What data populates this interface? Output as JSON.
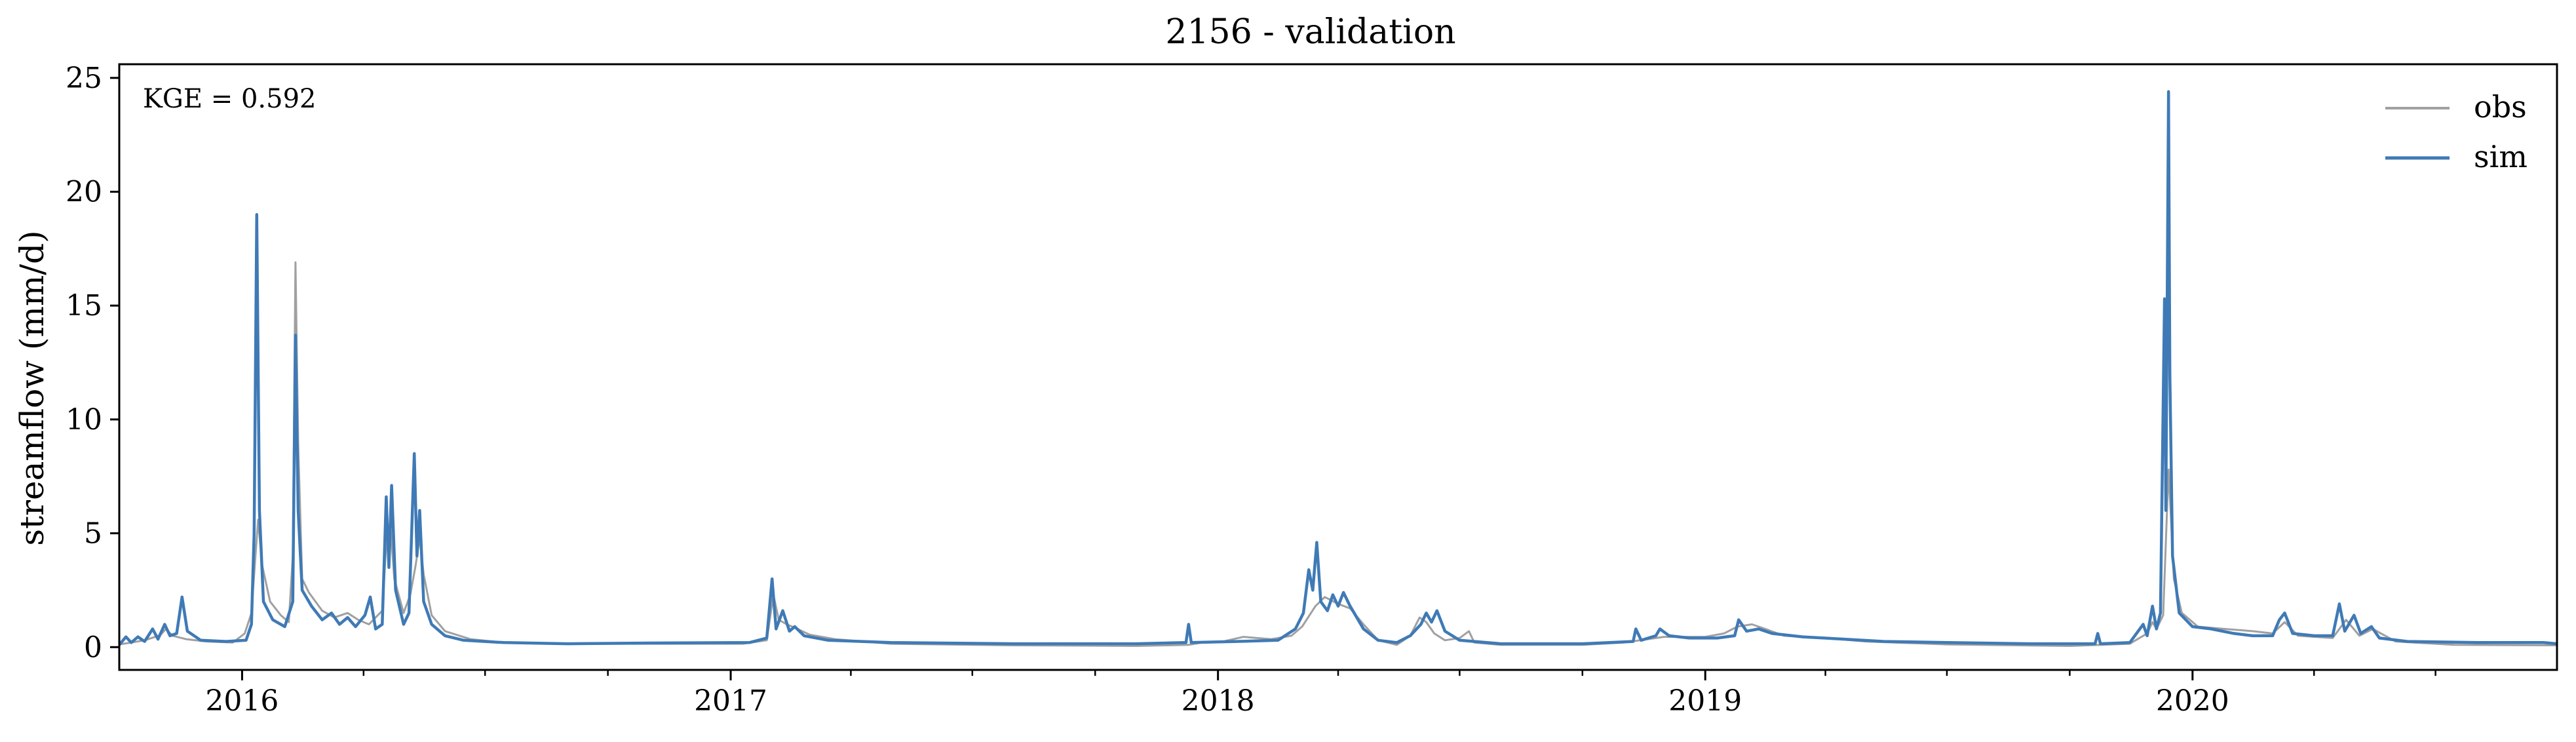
{
  "chart_data": {
    "type": "line",
    "title": "2156 - validation",
    "xlabel": "",
    "ylabel": "streamflow (mm/d)",
    "annotation": "KGE = 0.592",
    "xlim": [
      "2015-10-01",
      "2020-09-30"
    ],
    "ylim": [
      -1.0,
      25.6
    ],
    "yticks": [
      0,
      5,
      10,
      15,
      20,
      25
    ],
    "ytick_labels": [
      "0",
      "5",
      "10",
      "15",
      "20",
      "25"
    ],
    "xticks": [
      "2016-01-01",
      "2017-01-01",
      "2018-01-01",
      "2019-01-01",
      "2020-01-01"
    ],
    "xtick_labels": [
      "2016",
      "2017",
      "2018",
      "2019",
      "2020"
    ],
    "grid": false,
    "legend": {
      "position": "top-right",
      "entries": [
        "obs",
        "sim"
      ]
    },
    "series": [
      {
        "name": "obs",
        "color": "#a0a0a0",
        "points": [
          [
            "2015-10-01",
            0.12
          ],
          [
            "2015-10-10",
            0.2
          ],
          [
            "2015-10-20",
            0.3
          ],
          [
            "2015-10-28",
            0.45
          ],
          [
            "2015-11-01",
            0.55
          ],
          [
            "2015-11-05",
            0.8
          ],
          [
            "2015-11-10",
            0.5
          ],
          [
            "2015-11-20",
            0.35
          ],
          [
            "2015-12-05",
            0.25
          ],
          [
            "2015-12-25",
            0.2
          ],
          [
            "2016-01-03",
            0.6
          ],
          [
            "2016-01-08",
            1.5
          ],
          [
            "2016-01-11",
            4.0
          ],
          [
            "2016-01-13",
            5.6
          ],
          [
            "2016-01-16",
            3.6
          ],
          [
            "2016-01-22",
            2.0
          ],
          [
            "2016-01-30",
            1.4
          ],
          [
            "2016-02-05",
            1.1
          ],
          [
            "2016-02-08",
            4.0
          ],
          [
            "2016-02-10",
            16.9
          ],
          [
            "2016-02-12",
            9.0
          ],
          [
            "2016-02-15",
            3.0
          ],
          [
            "2016-02-20",
            2.4
          ],
          [
            "2016-03-01",
            1.6
          ],
          [
            "2016-03-10",
            1.3
          ],
          [
            "2016-03-20",
            1.5
          ],
          [
            "2016-03-28",
            1.2
          ],
          [
            "2016-04-05",
            1.0
          ],
          [
            "2016-04-15",
            1.6
          ],
          [
            "2016-04-18",
            4.5
          ],
          [
            "2016-04-21",
            5.4
          ],
          [
            "2016-04-24",
            3.0
          ],
          [
            "2016-05-01",
            1.5
          ],
          [
            "2016-05-06",
            2.3
          ],
          [
            "2016-05-10",
            3.6
          ],
          [
            "2016-05-13",
            4.8
          ],
          [
            "2016-05-16",
            3.2
          ],
          [
            "2016-05-22",
            1.4
          ],
          [
            "2016-06-01",
            0.7
          ],
          [
            "2016-06-20",
            0.35
          ],
          [
            "2016-07-15",
            0.2
          ],
          [
            "2016-09-01",
            0.15
          ],
          [
            "2016-11-01",
            0.15
          ],
          [
            "2017-01-10",
            0.15
          ],
          [
            "2017-01-28",
            0.3
          ],
          [
            "2017-02-02",
            2.3
          ],
          [
            "2017-02-06",
            1.2
          ],
          [
            "2017-02-12",
            1.0
          ],
          [
            "2017-02-20",
            0.8
          ],
          [
            "2017-03-01",
            0.55
          ],
          [
            "2017-03-20",
            0.35
          ],
          [
            "2017-05-01",
            0.15
          ],
          [
            "2017-08-01",
            0.08
          ],
          [
            "2017-11-01",
            0.05
          ],
          [
            "2017-12-10",
            0.1
          ],
          [
            "2017-12-20",
            0.2
          ],
          [
            "2018-01-05",
            0.25
          ],
          [
            "2018-01-20",
            0.45
          ],
          [
            "2018-02-10",
            0.35
          ],
          [
            "2018-02-25",
            0.5
          ],
          [
            "2018-03-05",
            0.9
          ],
          [
            "2018-03-15",
            1.8
          ],
          [
            "2018-03-22",
            2.2
          ],
          [
            "2018-04-01",
            1.9
          ],
          [
            "2018-04-10",
            1.7
          ],
          [
            "2018-04-20",
            1.0
          ],
          [
            "2018-05-01",
            0.3
          ],
          [
            "2018-05-15",
            0.1
          ],
          [
            "2018-05-25",
            0.5
          ],
          [
            "2018-06-01",
            1.3
          ],
          [
            "2018-06-06",
            1.1
          ],
          [
            "2018-06-12",
            0.6
          ],
          [
            "2018-06-20",
            0.3
          ],
          [
            "2018-07-01",
            0.4
          ],
          [
            "2018-07-08",
            0.7
          ],
          [
            "2018-07-12",
            0.2
          ],
          [
            "2018-08-01",
            0.1
          ],
          [
            "2018-10-01",
            0.1
          ],
          [
            "2018-11-01",
            0.2
          ],
          [
            "2018-12-01",
            0.45
          ],
          [
            "2019-01-01",
            0.45
          ],
          [
            "2019-01-15",
            0.6
          ],
          [
            "2019-01-25",
            0.9
          ],
          [
            "2019-02-05",
            1.0
          ],
          [
            "2019-02-15",
            0.8
          ],
          [
            "2019-03-01",
            0.5
          ],
          [
            "2019-04-01",
            0.4
          ],
          [
            "2019-05-01",
            0.25
          ],
          [
            "2019-07-01",
            0.12
          ],
          [
            "2019-10-01",
            0.05
          ],
          [
            "2019-11-15",
            0.15
          ],
          [
            "2019-11-28",
            0.6
          ],
          [
            "2019-12-02",
            1.1
          ],
          [
            "2019-12-05",
            0.8
          ],
          [
            "2019-12-10",
            1.4
          ],
          [
            "2019-12-14",
            7.8
          ],
          [
            "2019-12-16",
            5.5
          ],
          [
            "2019-12-18",
            3.0
          ],
          [
            "2019-12-24",
            1.5
          ],
          [
            "2020-01-05",
            0.9
          ],
          [
            "2020-01-25",
            0.8
          ],
          [
            "2020-02-15",
            0.7
          ],
          [
            "2020-03-01",
            0.6
          ],
          [
            "2020-03-10",
            1.1
          ],
          [
            "2020-03-20",
            0.5
          ],
          [
            "2020-04-15",
            0.4
          ],
          [
            "2020-04-25",
            1.2
          ],
          [
            "2020-05-05",
            0.5
          ],
          [
            "2020-05-15",
            0.8
          ],
          [
            "2020-06-01",
            0.25
          ],
          [
            "2020-07-15",
            0.1
          ],
          [
            "2020-09-30",
            0.08
          ]
        ]
      },
      {
        "name": "sim",
        "color": "#3f7ab6",
        "points": [
          [
            "2015-10-01",
            0.1
          ],
          [
            "2015-10-06",
            0.45
          ],
          [
            "2015-10-10",
            0.2
          ],
          [
            "2015-10-15",
            0.45
          ],
          [
            "2015-10-20",
            0.25
          ],
          [
            "2015-10-26",
            0.8
          ],
          [
            "2015-10-30",
            0.35
          ],
          [
            "2015-11-04",
            1.0
          ],
          [
            "2015-11-08",
            0.5
          ],
          [
            "2015-11-13",
            0.6
          ],
          [
            "2015-11-17",
            2.2
          ],
          [
            "2015-11-21",
            0.7
          ],
          [
            "2015-12-01",
            0.3
          ],
          [
            "2015-12-20",
            0.25
          ],
          [
            "2016-01-04",
            0.3
          ],
          [
            "2016-01-08",
            1.0
          ],
          [
            "2016-01-10",
            5.0
          ],
          [
            "2016-01-12",
            19.0
          ],
          [
            "2016-01-14",
            6.0
          ],
          [
            "2016-01-17",
            2.0
          ],
          [
            "2016-01-24",
            1.2
          ],
          [
            "2016-02-02",
            0.9
          ],
          [
            "2016-02-08",
            2.0
          ],
          [
            "2016-02-10",
            13.7
          ],
          [
            "2016-02-12",
            6.0
          ],
          [
            "2016-02-15",
            2.5
          ],
          [
            "2016-02-22",
            1.8
          ],
          [
            "2016-03-01",
            1.2
          ],
          [
            "2016-03-08",
            1.5
          ],
          [
            "2016-03-14",
            1.0
          ],
          [
            "2016-03-20",
            1.3
          ],
          [
            "2016-03-26",
            0.9
          ],
          [
            "2016-04-02",
            1.4
          ],
          [
            "2016-04-06",
            2.2
          ],
          [
            "2016-04-10",
            0.8
          ],
          [
            "2016-04-15",
            1.0
          ],
          [
            "2016-04-18",
            6.6
          ],
          [
            "2016-04-20",
            3.5
          ],
          [
            "2016-04-22",
            7.1
          ],
          [
            "2016-04-25",
            2.5
          ],
          [
            "2016-05-01",
            1.0
          ],
          [
            "2016-05-05",
            1.5
          ],
          [
            "2016-05-09",
            8.5
          ],
          [
            "2016-05-11",
            4.0
          ],
          [
            "2016-05-13",
            6.0
          ],
          [
            "2016-05-16",
            2.0
          ],
          [
            "2016-05-22",
            1.0
          ],
          [
            "2016-06-01",
            0.5
          ],
          [
            "2016-06-15",
            0.3
          ],
          [
            "2016-07-15",
            0.2
          ],
          [
            "2016-09-01",
            0.15
          ],
          [
            "2016-11-01",
            0.18
          ],
          [
            "2017-01-15",
            0.2
          ],
          [
            "2017-01-28",
            0.4
          ],
          [
            "2017-02-01",
            3.0
          ],
          [
            "2017-02-04",
            0.8
          ],
          [
            "2017-02-09",
            1.6
          ],
          [
            "2017-02-14",
            0.7
          ],
          [
            "2017-02-18",
            0.9
          ],
          [
            "2017-02-25",
            0.5
          ],
          [
            "2017-03-15",
            0.3
          ],
          [
            "2017-05-01",
            0.2
          ],
          [
            "2017-08-01",
            0.15
          ],
          [
            "2017-11-01",
            0.15
          ],
          [
            "2017-12-08",
            0.2
          ],
          [
            "2017-12-10",
            1.0
          ],
          [
            "2017-12-12",
            0.2
          ],
          [
            "2018-01-15",
            0.25
          ],
          [
            "2018-02-15",
            0.3
          ],
          [
            "2018-02-28",
            0.8
          ],
          [
            "2018-03-06",
            1.5
          ],
          [
            "2018-03-10",
            3.4
          ],
          [
            "2018-03-13",
            2.5
          ],
          [
            "2018-03-16",
            4.6
          ],
          [
            "2018-03-19",
            2.0
          ],
          [
            "2018-03-24",
            1.6
          ],
          [
            "2018-03-28",
            2.3
          ],
          [
            "2018-04-01",
            1.8
          ],
          [
            "2018-04-05",
            2.4
          ],
          [
            "2018-04-10",
            1.8
          ],
          [
            "2018-04-20",
            0.8
          ],
          [
            "2018-05-01",
            0.3
          ],
          [
            "2018-05-15",
            0.2
          ],
          [
            "2018-05-25",
            0.5
          ],
          [
            "2018-06-02",
            1.0
          ],
          [
            "2018-06-06",
            1.5
          ],
          [
            "2018-06-10",
            1.1
          ],
          [
            "2018-06-14",
            1.6
          ],
          [
            "2018-06-20",
            0.7
          ],
          [
            "2018-07-01",
            0.3
          ],
          [
            "2018-08-01",
            0.15
          ],
          [
            "2018-10-01",
            0.15
          ],
          [
            "2018-11-08",
            0.25
          ],
          [
            "2018-11-10",
            0.8
          ],
          [
            "2018-11-14",
            0.3
          ],
          [
            "2018-11-25",
            0.5
          ],
          [
            "2018-11-28",
            0.8
          ],
          [
            "2018-12-05",
            0.5
          ],
          [
            "2018-12-20",
            0.4
          ],
          [
            "2019-01-10",
            0.4
          ],
          [
            "2019-01-23",
            0.5
          ],
          [
            "2019-01-26",
            1.2
          ],
          [
            "2019-02-01",
            0.7
          ],
          [
            "2019-02-10",
            0.8
          ],
          [
            "2019-02-20",
            0.6
          ],
          [
            "2019-03-15",
            0.45
          ],
          [
            "2019-04-15",
            0.35
          ],
          [
            "2019-05-15",
            0.25
          ],
          [
            "2019-07-01",
            0.2
          ],
          [
            "2019-09-01",
            0.15
          ],
          [
            "2019-10-20",
            0.15
          ],
          [
            "2019-10-22",
            0.6
          ],
          [
            "2019-10-24",
            0.15
          ],
          [
            "2019-11-15",
            0.2
          ],
          [
            "2019-11-25",
            1.0
          ],
          [
            "2019-11-28",
            0.5
          ],
          [
            "2019-12-02",
            1.8
          ],
          [
            "2019-12-05",
            0.8
          ],
          [
            "2019-12-08",
            1.5
          ],
          [
            "2019-12-11",
            15.3
          ],
          [
            "2019-12-12",
            6.0
          ],
          [
            "2019-12-14",
            24.4
          ],
          [
            "2019-12-15",
            12.0
          ],
          [
            "2019-12-17",
            4.0
          ],
          [
            "2019-12-22",
            1.5
          ],
          [
            "2020-01-01",
            0.9
          ],
          [
            "2020-01-15",
            0.8
          ],
          [
            "2020-02-01",
            0.6
          ],
          [
            "2020-02-15",
            0.5
          ],
          [
            "2020-03-01",
            0.5
          ],
          [
            "2020-03-06",
            1.2
          ],
          [
            "2020-03-10",
            1.5
          ],
          [
            "2020-03-16",
            0.6
          ],
          [
            "2020-04-01",
            0.5
          ],
          [
            "2020-04-15",
            0.5
          ],
          [
            "2020-04-20",
            1.9
          ],
          [
            "2020-04-24",
            0.7
          ],
          [
            "2020-05-01",
            1.4
          ],
          [
            "2020-05-06",
            0.6
          ],
          [
            "2020-05-14",
            0.9
          ],
          [
            "2020-05-20",
            0.4
          ],
          [
            "2020-06-10",
            0.25
          ],
          [
            "2020-08-01",
            0.2
          ],
          [
            "2020-09-20",
            0.2
          ],
          [
            "2020-09-30",
            0.15
          ]
        ]
      }
    ]
  }
}
